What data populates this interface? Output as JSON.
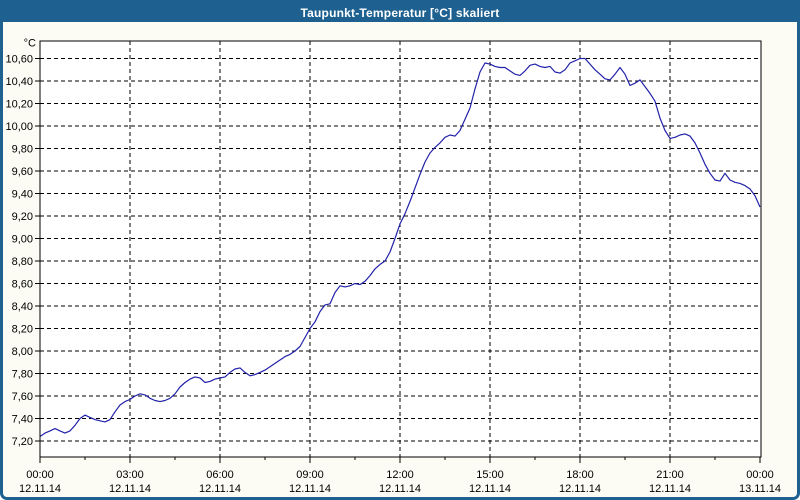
{
  "window": {
    "title": "Taupunkt-Temperatur [°C] skaliert"
  },
  "colors": {
    "titlebar": "#1E6191",
    "frame": "#1E6191",
    "background": "#FCFCF4",
    "plot_background": "#FFFFFF",
    "grid": "#000000",
    "axis": "#000000",
    "text": "#000000",
    "line": "#2222AA"
  },
  "chart_data": {
    "type": "line",
    "title": "Taupunkt-Temperatur [°C] skaliert",
    "ylabel": "°C",
    "grid": "dashed",
    "legend": "none",
    "ylim": [
      7.06,
      10.76
    ],
    "y_ticks": [
      {
        "value": 10.6,
        "label": "10,60"
      },
      {
        "value": 10.4,
        "label": "10,40"
      },
      {
        "value": 10.2,
        "label": "10,20"
      },
      {
        "value": 10.0,
        "label": "10,00"
      },
      {
        "value": 9.8,
        "label": "9,80"
      },
      {
        "value": 9.6,
        "label": "9,60"
      },
      {
        "value": 9.4,
        "label": "9,40"
      },
      {
        "value": 9.2,
        "label": "9,20"
      },
      {
        "value": 9.0,
        "label": "9,00"
      },
      {
        "value": 8.8,
        "label": "8,80"
      },
      {
        "value": 8.6,
        "label": "8,60"
      },
      {
        "value": 8.4,
        "label": "8,40"
      },
      {
        "value": 8.2,
        "label": "8,20"
      },
      {
        "value": 8.0,
        "label": "8,00"
      },
      {
        "value": 7.8,
        "label": "7,80"
      },
      {
        "value": 7.6,
        "label": "7,60"
      },
      {
        "value": 7.4,
        "label": "7,40"
      },
      {
        "value": 7.2,
        "label": "7,20"
      }
    ],
    "x_ticks": [
      {
        "hour": 0,
        "time": "00:00",
        "date": "12.11.14"
      },
      {
        "hour": 3,
        "time": "03:00",
        "date": "12.11.14"
      },
      {
        "hour": 6,
        "time": "06:00",
        "date": "12.11.14"
      },
      {
        "hour": 9,
        "time": "09:00",
        "date": "12.11.14"
      },
      {
        "hour": 12,
        "time": "12:00",
        "date": "12.11.14"
      },
      {
        "hour": 15,
        "time": "15:00",
        "date": "12.11.14"
      },
      {
        "hour": 18,
        "time": "18:00",
        "date": "12.11.14"
      },
      {
        "hour": 21,
        "time": "21:00",
        "date": "12.11.14"
      },
      {
        "hour": 24,
        "time": "00:00",
        "date": "13.11.14"
      }
    ],
    "minor_x_tick_hours": [
      1.5,
      4.5,
      7.5,
      10.5,
      13.5,
      16.5,
      19.5,
      22.5
    ],
    "series": [
      {
        "name": "Taupunkt-Temperatur",
        "color": "#2222AA",
        "x_start_minute": 0,
        "x_interval_minutes": 10,
        "values": [
          7.24,
          7.27,
          7.29,
          7.31,
          7.29,
          7.27,
          7.29,
          7.34,
          7.4,
          7.43,
          7.41,
          7.39,
          7.38,
          7.37,
          7.39,
          7.46,
          7.52,
          7.55,
          7.57,
          7.6,
          7.62,
          7.61,
          7.58,
          7.56,
          7.55,
          7.56,
          7.58,
          7.62,
          7.68,
          7.72,
          7.75,
          7.77,
          7.76,
          7.72,
          7.73,
          7.75,
          7.76,
          7.77,
          7.81,
          7.84,
          7.85,
          7.81,
          7.78,
          7.79,
          7.81,
          7.83,
          7.86,
          7.89,
          7.92,
          7.95,
          7.97,
          8.0,
          8.04,
          8.12,
          8.2,
          8.26,
          8.35,
          8.41,
          8.42,
          8.52,
          8.58,
          8.57,
          8.58,
          8.6,
          8.59,
          8.62,
          8.67,
          8.73,
          8.77,
          8.8,
          8.88,
          9.0,
          9.13,
          9.22,
          9.33,
          9.45,
          9.57,
          9.68,
          9.76,
          9.81,
          9.85,
          9.9,
          9.92,
          9.91,
          9.96,
          10.06,
          10.16,
          10.33,
          10.48,
          10.56,
          10.55,
          10.53,
          10.52,
          10.52,
          10.49,
          10.46,
          10.45,
          10.49,
          10.54,
          10.55,
          10.53,
          10.52,
          10.53,
          10.48,
          10.47,
          10.5,
          10.56,
          10.58,
          10.6,
          10.6,
          10.55,
          10.5,
          10.46,
          10.42,
          10.41,
          10.46,
          10.52,
          10.46,
          10.36,
          10.38,
          10.41,
          10.35,
          10.29,
          10.22,
          10.07,
          9.96,
          9.89,
          9.9,
          9.92,
          9.93,
          9.91,
          9.85,
          9.76,
          9.66,
          9.58,
          9.52,
          9.51,
          9.58,
          9.52,
          9.5,
          9.49,
          9.47,
          9.44,
          9.38,
          9.28
        ]
      }
    ]
  }
}
